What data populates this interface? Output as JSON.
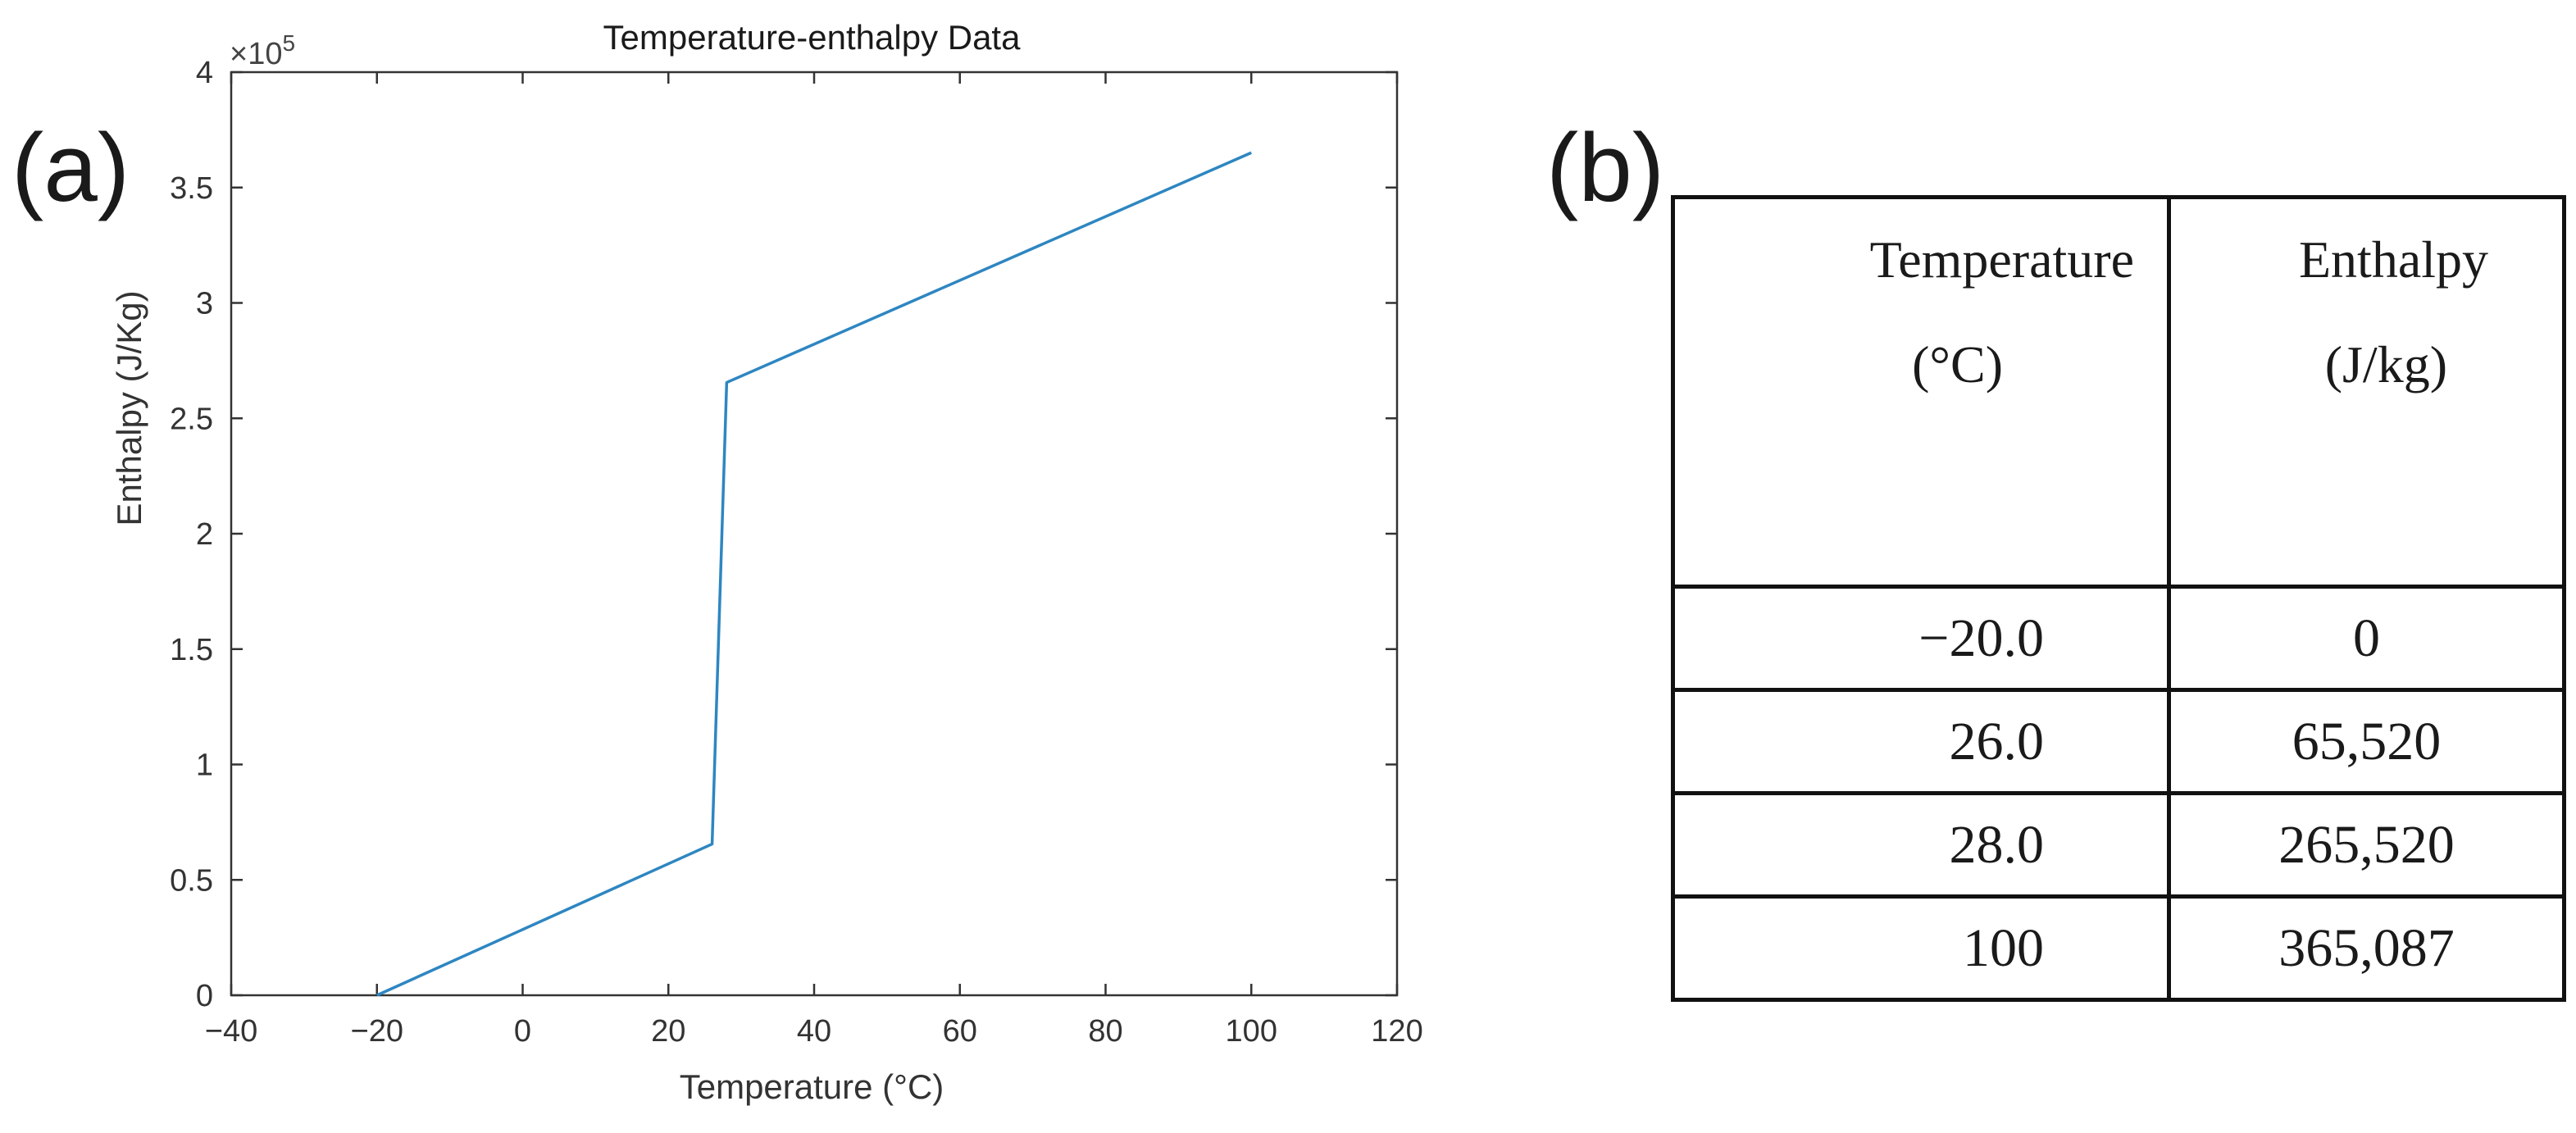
{
  "panel_labels": {
    "a": "(a)",
    "b": "(b)"
  },
  "chart_data": {
    "type": "line",
    "title": "Temperature-enthalpy Data",
    "xlabel": "Temperature (°C)",
    "ylabel": "Enthalpy (J/Kg)",
    "xlim": [
      -40,
      120
    ],
    "ylim": [
      0,
      400000
    ],
    "x_ticks": [
      -40,
      -20,
      0,
      20,
      40,
      60,
      80,
      100,
      120
    ],
    "x_tick_labels": [
      "−40",
      "−20",
      "0",
      "20",
      "40",
      "60",
      "80",
      "100",
      "120"
    ],
    "y_ticks": [
      0,
      50000,
      100000,
      150000,
      200000,
      250000,
      300000,
      350000,
      400000
    ],
    "y_tick_labels": [
      "0",
      "0.5",
      "1",
      "1.5",
      "2",
      "2.5",
      "3",
      "3.5",
      "4"
    ],
    "exponent_label": "×10",
    "exponent_power": "5",
    "line_color": "#2e86c1",
    "series": [
      {
        "name": "enthalpy",
        "x": [
          -20,
          26,
          28,
          100
        ],
        "y": [
          0,
          65520,
          265520,
          365087
        ]
      }
    ]
  },
  "table": {
    "headers": [
      {
        "name": "Temperature",
        "unit": "(°C)"
      },
      {
        "name": "Enthalpy",
        "unit": "(J/kg)"
      }
    ],
    "rows": [
      {
        "temperature": "−20.0",
        "enthalpy": "0"
      },
      {
        "temperature": "26.0",
        "enthalpy": "65,520"
      },
      {
        "temperature": "28.0",
        "enthalpy": "265,520"
      },
      {
        "temperature": "100",
        "enthalpy": "365,087"
      }
    ]
  }
}
